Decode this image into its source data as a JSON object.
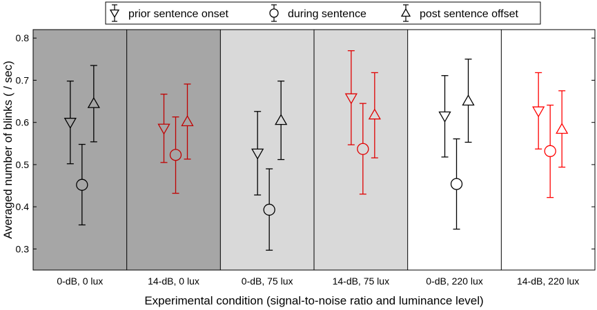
{
  "chart_data": {
    "type": "scatter",
    "xlabel": "Experimental condition (signal-to-noise ratio and luminance level)",
    "ylabel": "Averaged number of blinks ( / sec)",
    "ylim": [
      0.25,
      0.82
    ],
    "yticks": [
      0.3,
      0.4,
      0.5,
      0.6,
      0.7,
      0.8
    ],
    "ytick_labels": [
      "0.3",
      "0.4",
      "0.5",
      "0.6",
      "0.7",
      "0.8"
    ],
    "categories": [
      "0-dB, 0 lux",
      "14-dB, 0 lux",
      "0-dB, 75 lux",
      "14-dB, 75 lux",
      "0-dB, 220 lux",
      "14-dB, 220 lux"
    ],
    "panel_backgrounds": [
      "#a6a6a6",
      "#a6a6a6",
      "#d9d9d9",
      "#d9d9d9",
      "#ffffff",
      "#ffffff"
    ],
    "condition_colors": [
      "#000000",
      "#c00000",
      "#000000",
      "#e00000",
      "#000000",
      "#ff0000"
    ],
    "legend_position": "top",
    "grid": false,
    "series": [
      {
        "name": "prior sentence onset",
        "marker": "triangle-down",
        "values": [
          0.6,
          0.586,
          0.527,
          0.658,
          0.615,
          0.627
        ],
        "lower": [
          0.502,
          0.505,
          0.428,
          0.547,
          0.518,
          0.537
        ],
        "upper": [
          0.698,
          0.667,
          0.626,
          0.77,
          0.711,
          0.718
        ]
      },
      {
        "name": "during sentence",
        "marker": "circle",
        "values": [
          0.452,
          0.523,
          0.393,
          0.537,
          0.454,
          0.532
        ],
        "lower": [
          0.357,
          0.432,
          0.297,
          0.43,
          0.347,
          0.422
        ],
        "upper": [
          0.548,
          0.613,
          0.49,
          0.645,
          0.561,
          0.641
        ]
      },
      {
        "name": "post sentence offset",
        "marker": "triangle-up",
        "values": [
          0.645,
          0.602,
          0.605,
          0.618,
          0.651,
          0.584
        ],
        "lower": [
          0.554,
          0.513,
          0.512,
          0.516,
          0.553,
          0.494
        ],
        "upper": [
          0.735,
          0.691,
          0.698,
          0.718,
          0.75,
          0.675
        ]
      }
    ]
  }
}
